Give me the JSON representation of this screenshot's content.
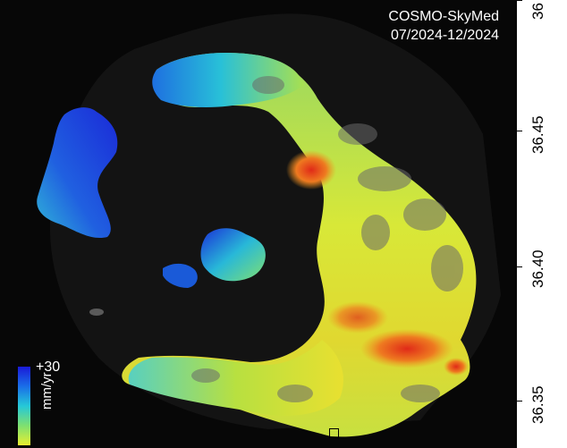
{
  "header": {
    "sensor": "COSMO-SkyMed",
    "period": "07/2024-12/2024"
  },
  "legend": {
    "max_label": "+30",
    "unit_label": "mm/yr",
    "colors": [
      "#1a1ad8",
      "#1a6ee8",
      "#25c8d8",
      "#7ee070",
      "#e8ee30"
    ]
  },
  "latitude_axis": {
    "ticks": [
      "36",
      "36.45",
      "36.40",
      "36.35"
    ]
  },
  "palette": {
    "sea": "#070707",
    "high": "#1a1ad8",
    "mid": "#25c8d8",
    "low": "#e8ee30",
    "hot": "#e8501a"
  }
}
